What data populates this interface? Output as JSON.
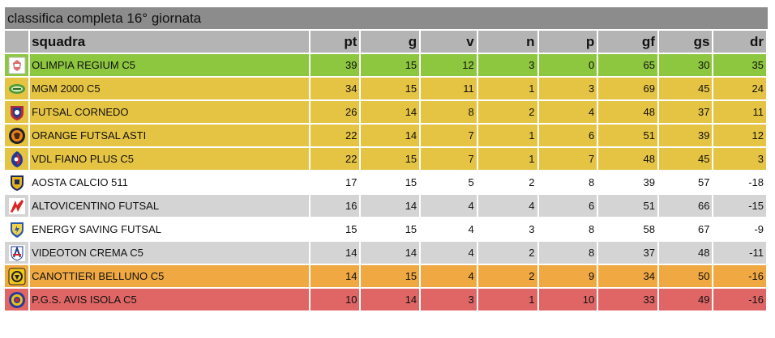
{
  "title": "classifica completa 16° giornata",
  "headers": {
    "team": "squadra",
    "pt": "pt",
    "g": "g",
    "v": "v",
    "n": "n",
    "p": "p",
    "gf": "gf",
    "gs": "gs",
    "dr": "dr"
  },
  "colors": {
    "leader": "#8dc63f",
    "playoff": "#e6c443",
    "neutral": "#ffffff",
    "neutral_alt": "#d4d4d4",
    "playout": "#f0a842",
    "relegation": "#e06666"
  },
  "rows": [
    {
      "team": "OLIMPIA REGIUM C5",
      "pt": "39",
      "g": "15",
      "v": "12",
      "n": "3",
      "p": "0",
      "gf": "65",
      "gs": "30",
      "dr": "35",
      "zone": "leader",
      "logo_icon": "olimpia-regium-logo-icon"
    },
    {
      "team": "MGM 2000 C5",
      "pt": "34",
      "g": "15",
      "v": "11",
      "n": "1",
      "p": "3",
      "gf": "69",
      "gs": "45",
      "dr": "24",
      "zone": "playoff",
      "logo_icon": "mgm-2000-logo-icon"
    },
    {
      "team": "FUTSAL CORNEDO",
      "pt": "26",
      "g": "14",
      "v": "8",
      "n": "2",
      "p": "4",
      "gf": "48",
      "gs": "37",
      "dr": "11",
      "zone": "playoff",
      "logo_icon": "futsal-cornedo-logo-icon"
    },
    {
      "team": "ORANGE FUTSAL ASTI",
      "pt": "22",
      "g": "14",
      "v": "7",
      "n": "1",
      "p": "6",
      "gf": "51",
      "gs": "39",
      "dr": "12",
      "zone": "playoff",
      "logo_icon": "orange-futsal-asti-logo-icon"
    },
    {
      "team": "VDL FIANO PLUS C5",
      "pt": "22",
      "g": "15",
      "v": "7",
      "n": "1",
      "p": "7",
      "gf": "48",
      "gs": "45",
      "dr": "3",
      "zone": "playoff",
      "logo_icon": "vdl-fiano-plus-logo-icon"
    },
    {
      "team": "AOSTA CALCIO 511",
      "pt": "17",
      "g": "15",
      "v": "5",
      "n": "2",
      "p": "8",
      "gf": "39",
      "gs": "57",
      "dr": "-18",
      "zone": "neutral",
      "logo_icon": "aosta-calcio-logo-icon"
    },
    {
      "team": "ALTOVICENTINO FUTSAL",
      "pt": "16",
      "g": "14",
      "v": "4",
      "n": "4",
      "p": "6",
      "gf": "51",
      "gs": "66",
      "dr": "-15",
      "zone": "neutral_alt",
      "logo_icon": "altovicentino-logo-icon"
    },
    {
      "team": "ENERGY SAVING FUTSAL",
      "pt": "15",
      "g": "15",
      "v": "4",
      "n": "3",
      "p": "8",
      "gf": "58",
      "gs": "67",
      "dr": "-9",
      "zone": "neutral",
      "logo_icon": "energy-saving-logo-icon"
    },
    {
      "team": "VIDEOTON CREMA C5",
      "pt": "14",
      "g": "14",
      "v": "4",
      "n": "2",
      "p": "8",
      "gf": "37",
      "gs": "48",
      "dr": "-11",
      "zone": "neutral_alt",
      "logo_icon": "videoton-crema-logo-icon"
    },
    {
      "team": "CANOTTIERI BELLUNO C5",
      "pt": "14",
      "g": "15",
      "v": "4",
      "n": "2",
      "p": "9",
      "gf": "34",
      "gs": "50",
      "dr": "-16",
      "zone": "playout",
      "logo_icon": "canottieri-belluno-logo-icon"
    },
    {
      "team": "P.G.S. AVIS ISOLA C5",
      "pt": "10",
      "g": "14",
      "v": "3",
      "n": "1",
      "p": "10",
      "gf": "33",
      "gs": "49",
      "dr": "-16",
      "zone": "relegation",
      "logo_icon": "avis-isola-logo-icon"
    }
  ]
}
